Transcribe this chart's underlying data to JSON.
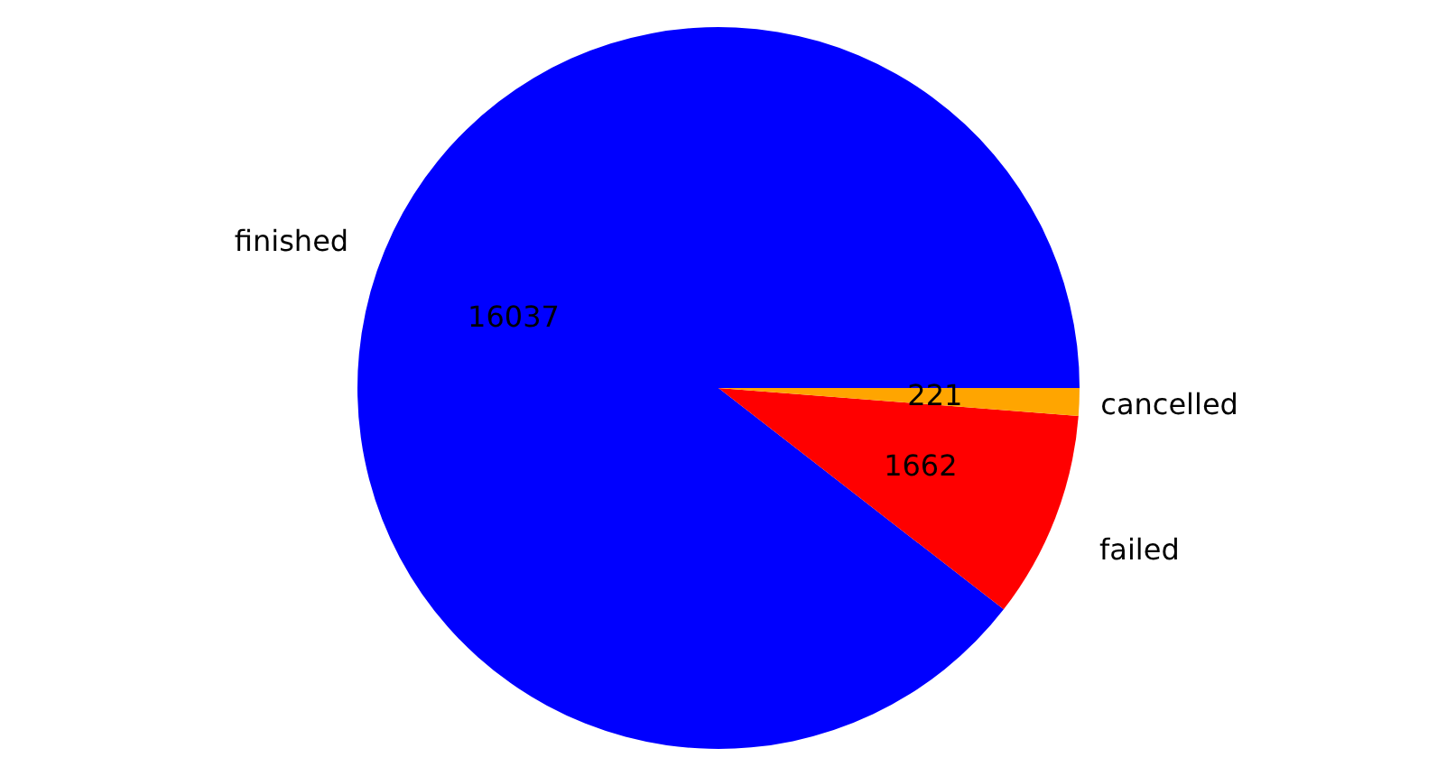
{
  "chart_data": {
    "type": "pie",
    "categories": [
      "finished",
      "failed",
      "cancelled"
    ],
    "values": [
      16037,
      1662,
      221
    ],
    "colors": [
      "#0000ff",
      "#ff0000",
      "#ffa500"
    ],
    "data_labels": true,
    "legend": false
  }
}
